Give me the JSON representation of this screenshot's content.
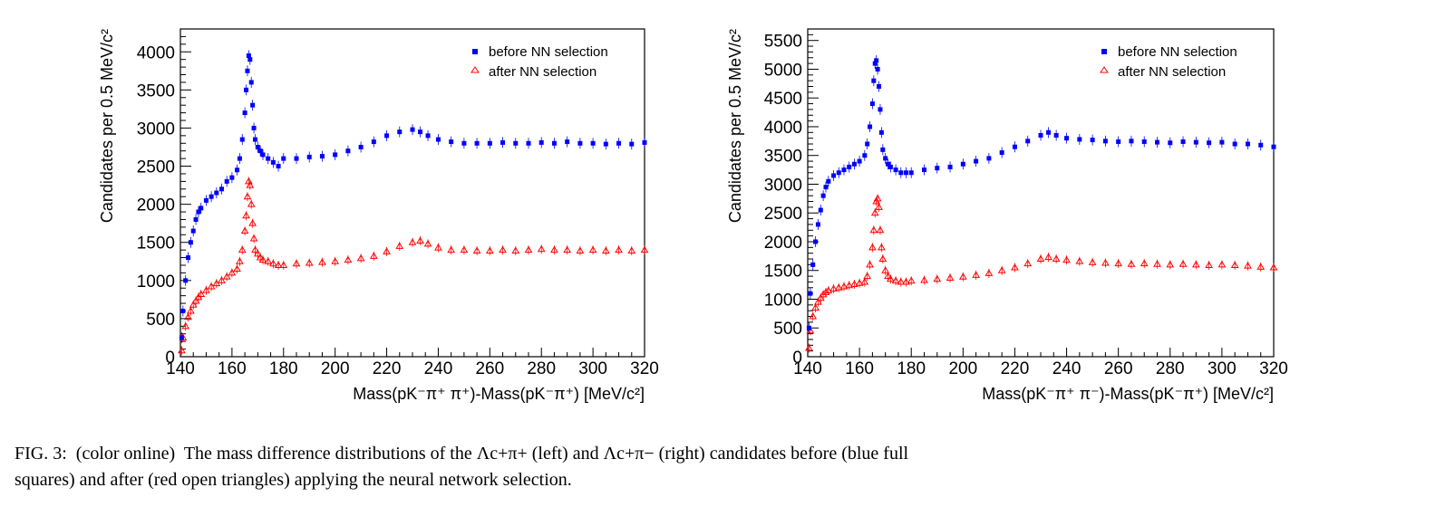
{
  "figure": {
    "caption_line1": "FIG. 3:  (color online)  The mass difference distributions of the Λc+π+ (left) and Λc+π− (right) candidates before (blue full",
    "caption_line2": "squares) and after (red open triangles) applying the neural network selection."
  },
  "colors": {
    "before": "#0000ff",
    "after": "#ff0000"
  },
  "chart_data": [
    {
      "type": "scatter",
      "xlabel": "Mass(pK⁻π⁺ π⁺)-Mass(pK⁻π⁺) [MeV/c²]",
      "ylabel": "Candidates per 0.5 MeV/c²",
      "xlim": [
        140,
        320
      ],
      "ylim": [
        0,
        4300
      ],
      "xticks": [
        140,
        160,
        180,
        200,
        220,
        240,
        260,
        280,
        300,
        320
      ],
      "yticks": [
        0,
        500,
        1000,
        1500,
        2000,
        2500,
        3000,
        3500,
        4000
      ],
      "legend_position": "top-right",
      "series": [
        {
          "name": "before NN selection",
          "marker": "full-square",
          "x": [
            140.5,
            141,
            142,
            143,
            144,
            145,
            146,
            147,
            148,
            150,
            152,
            154,
            156,
            158,
            160,
            162,
            163,
            164,
            165,
            165.5,
            166,
            166.5,
            167,
            167.5,
            168,
            168.5,
            169,
            170,
            171,
            172,
            174,
            176,
            178,
            180,
            185,
            190,
            195,
            200,
            205,
            210,
            215,
            220,
            225,
            230,
            233,
            236,
            240,
            245,
            250,
            255,
            260,
            265,
            270,
            275,
            280,
            285,
            290,
            295,
            300,
            305,
            310,
            315,
            320
          ],
          "y": [
            250,
            600,
            1000,
            1300,
            1500,
            1650,
            1800,
            1900,
            1950,
            2050,
            2100,
            2150,
            2200,
            2300,
            2350,
            2450,
            2600,
            2850,
            3200,
            3500,
            3750,
            3950,
            3900,
            3600,
            3300,
            3000,
            2850,
            2750,
            2700,
            2650,
            2600,
            2550,
            2500,
            2600,
            2600,
            2620,
            2630,
            2650,
            2700,
            2750,
            2820,
            2900,
            2950,
            2980,
            2950,
            2900,
            2850,
            2820,
            2800,
            2800,
            2800,
            2810,
            2800,
            2800,
            2810,
            2800,
            2820,
            2800,
            2800,
            2790,
            2800,
            2790,
            2810
          ]
        },
        {
          "name": "after NN selection",
          "marker": "open-triangle",
          "x": [
            140.5,
            141,
            142,
            143,
            144,
            145,
            146,
            147,
            148,
            150,
            152,
            154,
            156,
            158,
            160,
            162,
            163,
            164,
            165,
            165.5,
            166,
            166.5,
            167,
            167.5,
            168,
            168.5,
            169,
            170,
            171,
            172,
            174,
            176,
            178,
            180,
            185,
            190,
            195,
            200,
            205,
            210,
            215,
            220,
            225,
            230,
            233,
            236,
            240,
            245,
            250,
            255,
            260,
            265,
            270,
            275,
            280,
            285,
            290,
            295,
            300,
            305,
            310,
            315,
            320
          ],
          "y": [
            80,
            250,
            400,
            520,
            600,
            680,
            730,
            780,
            820,
            870,
            920,
            960,
            1000,
            1050,
            1100,
            1150,
            1250,
            1400,
            1650,
            1850,
            2100,
            2300,
            2250,
            2000,
            1750,
            1550,
            1400,
            1350,
            1300,
            1270,
            1250,
            1220,
            1200,
            1200,
            1220,
            1230,
            1240,
            1250,
            1270,
            1290,
            1320,
            1380,
            1450,
            1500,
            1520,
            1480,
            1430,
            1400,
            1400,
            1390,
            1390,
            1400,
            1390,
            1400,
            1410,
            1400,
            1400,
            1390,
            1400,
            1390,
            1400,
            1390,
            1400
          ]
        }
      ]
    },
    {
      "type": "scatter",
      "xlabel": "Mass(pK⁻π⁺ π⁻)-Mass(pK⁻π⁺) [MeV/c²]",
      "ylabel": "Candidates per 0.5 MeV/c²",
      "xlim": [
        140,
        320
      ],
      "ylim": [
        0,
        5700
      ],
      "xticks": [
        140,
        160,
        180,
        200,
        220,
        240,
        260,
        280,
        300,
        320
      ],
      "yticks": [
        0,
        500,
        1000,
        1500,
        2000,
        2500,
        3000,
        3500,
        4000,
        4500,
        5000,
        5500
      ],
      "legend_position": "top-right",
      "series": [
        {
          "name": "before NN selection",
          "marker": "full-square",
          "x": [
            140.5,
            141,
            142,
            143,
            144,
            145,
            146,
            147,
            148,
            150,
            152,
            154,
            156,
            158,
            160,
            162,
            163,
            164,
            165,
            165.5,
            166,
            166.5,
            167,
            167.5,
            168,
            168.5,
            169,
            170,
            171,
            172,
            174,
            176,
            178,
            180,
            185,
            190,
            195,
            200,
            205,
            210,
            215,
            220,
            225,
            230,
            233,
            236,
            240,
            245,
            250,
            255,
            260,
            265,
            270,
            275,
            280,
            285,
            290,
            295,
            300,
            305,
            310,
            315,
            320
          ],
          "y": [
            500,
            1100,
            1600,
            2000,
            2300,
            2550,
            2800,
            2950,
            3050,
            3150,
            3200,
            3250,
            3300,
            3350,
            3400,
            3500,
            3700,
            4000,
            4400,
            4800,
            5100,
            5150,
            5000,
            4700,
            4300,
            3900,
            3600,
            3450,
            3350,
            3300,
            3250,
            3200,
            3200,
            3200,
            3250,
            3280,
            3300,
            3350,
            3400,
            3450,
            3550,
            3650,
            3750,
            3850,
            3900,
            3850,
            3800,
            3780,
            3770,
            3750,
            3740,
            3750,
            3740,
            3730,
            3720,
            3740,
            3730,
            3720,
            3730,
            3700,
            3700,
            3680,
            3650
          ]
        },
        {
          "name": "after NN selection",
          "marker": "open-triangle",
          "x": [
            140.5,
            141,
            142,
            143,
            144,
            145,
            146,
            147,
            148,
            150,
            152,
            154,
            156,
            158,
            160,
            162,
            163,
            164,
            165,
            165.5,
            166,
            166.5,
            167,
            167.5,
            168,
            168.5,
            169,
            170,
            171,
            172,
            174,
            176,
            178,
            180,
            185,
            190,
            195,
            200,
            205,
            210,
            215,
            220,
            225,
            230,
            233,
            236,
            240,
            245,
            250,
            255,
            260,
            265,
            270,
            275,
            280,
            285,
            290,
            295,
            300,
            305,
            310,
            315,
            320
          ],
          "y": [
            150,
            450,
            700,
            850,
            950,
            1020,
            1080,
            1120,
            1150,
            1180,
            1200,
            1220,
            1240,
            1260,
            1280,
            1300,
            1400,
            1600,
            1900,
            2200,
            2500,
            2700,
            2750,
            2600,
            2200,
            1900,
            1700,
            1500,
            1400,
            1350,
            1320,
            1300,
            1300,
            1320,
            1330,
            1350,
            1370,
            1390,
            1420,
            1450,
            1500,
            1550,
            1620,
            1700,
            1730,
            1700,
            1680,
            1660,
            1640,
            1630,
            1620,
            1610,
            1620,
            1610,
            1600,
            1610,
            1600,
            1590,
            1600,
            1590,
            1580,
            1560,
            1550
          ]
        }
      ]
    }
  ]
}
